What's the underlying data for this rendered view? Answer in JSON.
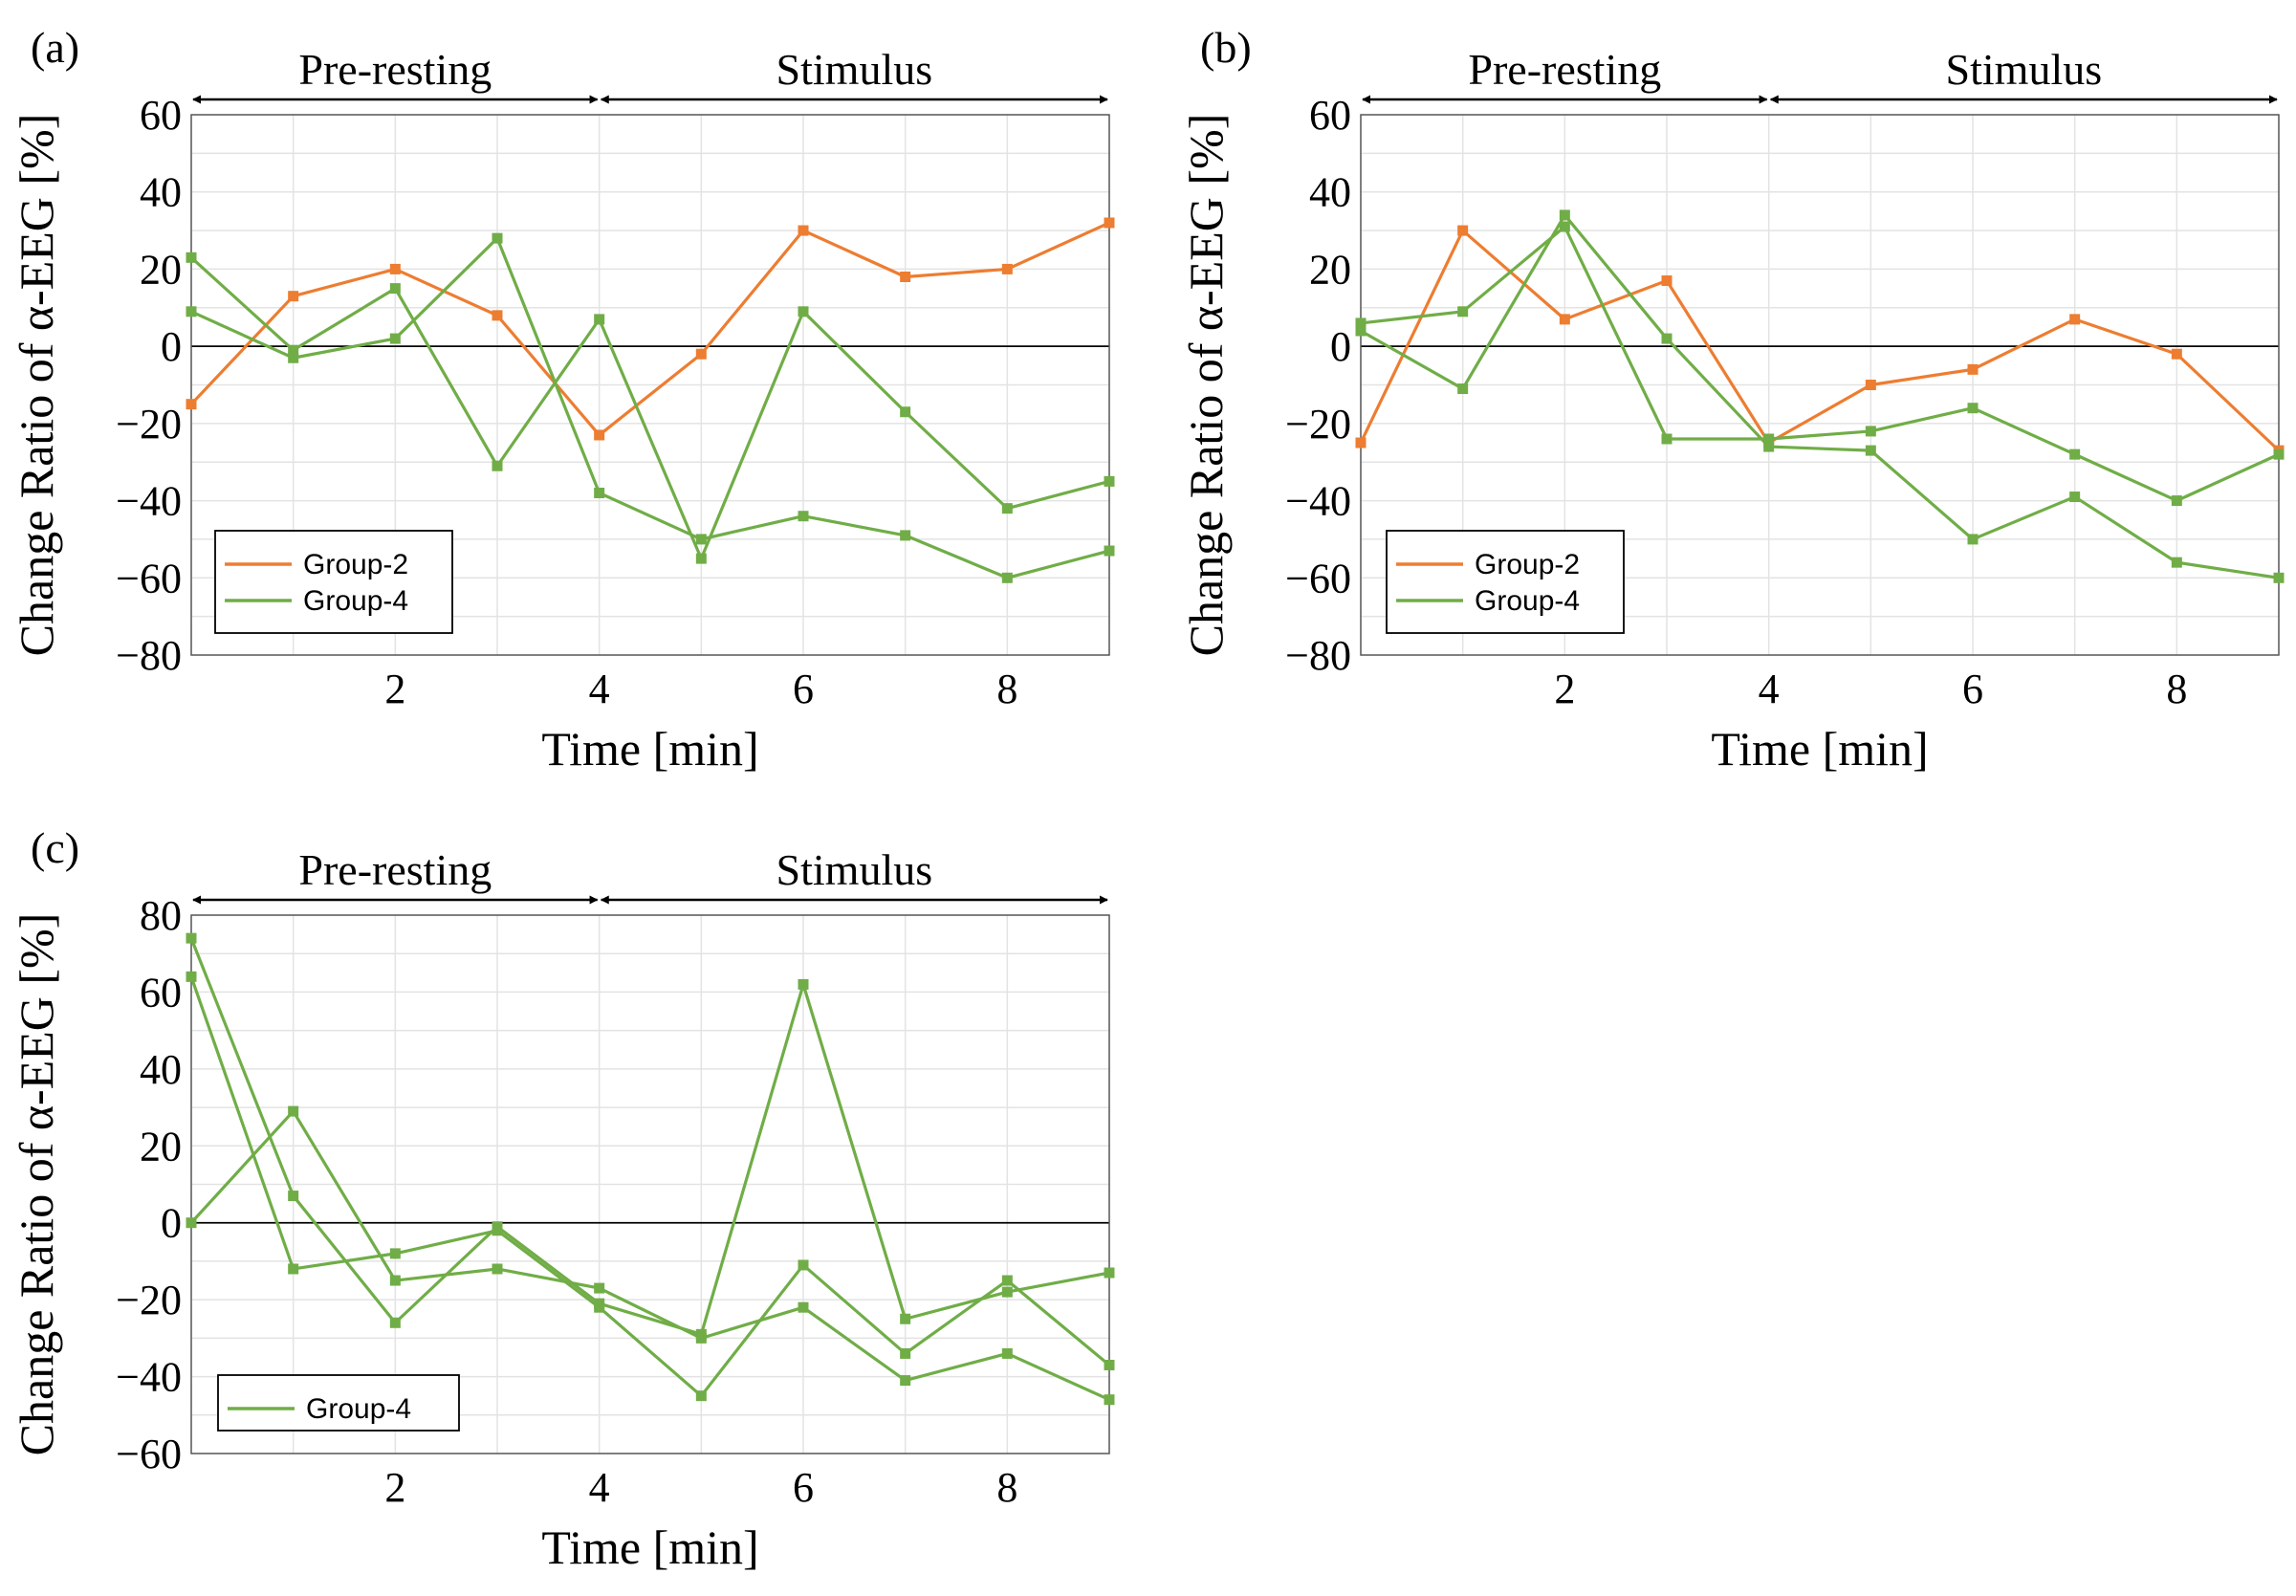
{
  "x_axis_label": "Time [min]",
  "y_axis_label": "Change Ratio of α-EEG [%]",
  "phase_labels": {
    "pre": "Pre-resting",
    "stim": "Stimulus"
  },
  "colors": {
    "group2": "#ED7D31",
    "group4": "#70AD47"
  },
  "chart_data": [
    {
      "panel": "(a)",
      "type": "line",
      "x": [
        0,
        1,
        2,
        3,
        4,
        5,
        6,
        7,
        8,
        9
      ],
      "xlim": [
        0,
        9
      ],
      "xticks": [
        2,
        4,
        6,
        8
      ],
      "ylim": [
        -80,
        60
      ],
      "yticks": [
        -80,
        -60,
        -40,
        -20,
        0,
        20,
        40,
        60
      ],
      "xlabel": "Time [min]",
      "ylabel": "Change Ratio of α-EEG [%]",
      "phases": [
        "Pre-resting",
        "Stimulus"
      ],
      "legend": [
        "Group-2",
        "Group-4"
      ],
      "series": [
        {
          "name": "Group-2",
          "color": "#ED7D31",
          "values": [
            -15,
            13,
            20,
            8,
            -23,
            -2,
            30,
            18,
            20,
            32
          ]
        },
        {
          "name": "Group-4",
          "color": "#70AD47",
          "values": [
            23,
            -1,
            15,
            -31,
            7,
            -55,
            9,
            -17,
            -42,
            -35
          ]
        },
        {
          "name": "Group-4",
          "color": "#70AD47",
          "values": [
            9,
            -3,
            2,
            28,
            -38,
            -50,
            -44,
            -49,
            -60,
            -53
          ]
        }
      ]
    },
    {
      "panel": "(b)",
      "type": "line",
      "x": [
        0,
        1,
        2,
        3,
        4,
        5,
        6,
        7,
        8,
        9
      ],
      "xlim": [
        0,
        9
      ],
      "xticks": [
        2,
        4,
        6,
        8
      ],
      "ylim": [
        -80,
        60
      ],
      "yticks": [
        -80,
        -60,
        -40,
        -20,
        0,
        20,
        40,
        60
      ],
      "xlabel": "Time [min]",
      "ylabel": "Change Ratio of α-EEG [%]",
      "phases": [
        "Pre-resting",
        "Stimulus"
      ],
      "legend": [
        "Group-2",
        "Group-4"
      ],
      "series": [
        {
          "name": "Group-2",
          "color": "#ED7D31",
          "values": [
            -25,
            30,
            7,
            17,
            -25,
            -10,
            -6,
            7,
            -2,
            -27
          ]
        },
        {
          "name": "Group-4",
          "color": "#70AD47",
          "values": [
            6,
            9,
            31,
            -24,
            -24,
            -22,
            -16,
            -28,
            -40,
            -28
          ]
        },
        {
          "name": "Group-4",
          "color": "#70AD47",
          "values": [
            4,
            -11,
            34,
            2,
            -26,
            -27,
            -50,
            -39,
            -56,
            -60
          ]
        }
      ]
    },
    {
      "panel": "(c)",
      "type": "line",
      "x": [
        0,
        1,
        2,
        3,
        4,
        5,
        6,
        7,
        8,
        9
      ],
      "xlim": [
        0,
        9
      ],
      "xticks": [
        2,
        4,
        6,
        8
      ],
      "ylim": [
        -60,
        80
      ],
      "yticks": [
        -60,
        -40,
        -20,
        0,
        20,
        40,
        60,
        80
      ],
      "xlabel": "Time [min]",
      "ylabel": "Change Ratio of α-EEG [%]",
      "phases": [
        "Pre-resting",
        "Stimulus"
      ],
      "legend": [
        "Group-4"
      ],
      "series": [
        {
          "name": "Group-4",
          "color": "#70AD47",
          "values": [
            74,
            7,
            -26,
            -1,
            -21,
            -29,
            62,
            -25,
            -18,
            -13
          ]
        },
        {
          "name": "Group-4",
          "color": "#70AD47",
          "values": [
            64,
            -12,
            -8,
            -2,
            -22,
            -45,
            -11,
            -34,
            -15,
            -37
          ]
        },
        {
          "name": "Group-4",
          "color": "#70AD47",
          "values": [
            0,
            29,
            -15,
            -12,
            -17,
            -30,
            -22,
            -41,
            -34,
            -46
          ]
        }
      ]
    }
  ]
}
